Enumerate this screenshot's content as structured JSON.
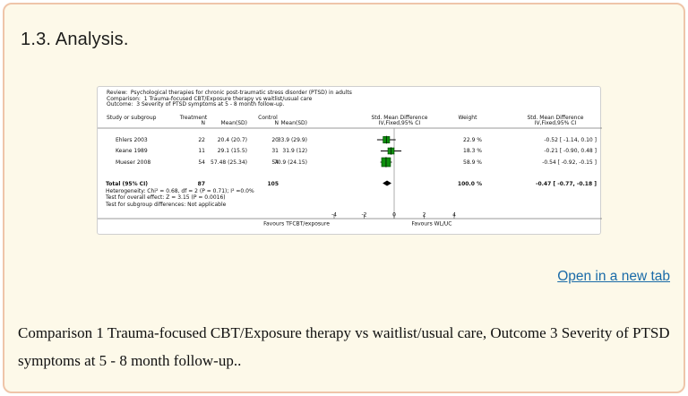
{
  "page": {
    "heading": "1.3. Analysis.",
    "link_label": "Open in a new tab",
    "caption": "Comparison 1 Trauma-focused CBT/Exposure therapy vs waitlist/usual care, Outcome 3 Severity of PTSD symptoms at 5 - 8 month follow-up..",
    "colors": {
      "card_background": "#fdf9e9",
      "card_border": "#efc5a9",
      "link": "#1a6ba8"
    }
  },
  "chart_data": {
    "type": "forest",
    "title_lines": {
      "review": "Review:  Psychological therapies for chronic post-traumatic stress disorder (PTSD) in adults",
      "comparison": "Comparison:  1 Trauma-focused CBT/Exposure therapy vs waitlist/usual care",
      "outcome": "Outcome:  3 Severity of PTSD symptoms at 5 - 8 month follow-up."
    },
    "columns": {
      "study": "Study or subgroup",
      "group1": "Treatment",
      "group2": "Control",
      "n": "N",
      "mean_sd": "Mean(SD)",
      "smd": "Std. Mean Difference",
      "method": "IV,Fixed,95% CI",
      "weight": "Weight"
    },
    "rows": [
      {
        "study": "Ehlers 2003",
        "n1": "22",
        "mean1": "20.4 (20.7)",
        "n2": "20",
        "mean2": "33.9 (29.9)",
        "weight": "22.9 %",
        "smd_text": "-0.52 [ -1.14, 0.10 ]",
        "est": -0.52,
        "lo": -1.14,
        "hi": 0.1,
        "w": 22.9
      },
      {
        "study": "Keane 1989",
        "n1": "11",
        "mean1": "29.1 (15.5)",
        "n2": "31",
        "mean2": "31.9 (12)",
        "weight": "18.3 %",
        "smd_text": "-0.21 [ -0.90, 0.48 ]",
        "est": -0.21,
        "lo": -0.9,
        "hi": 0.48,
        "w": 18.3
      },
      {
        "study": "Mueser 2008",
        "n1": "54",
        "mean1": "57.48 (25.34)",
        "n2": "54",
        "mean2": "70.9 (24.15)",
        "weight": "58.9 %",
        "smd_text": "-0.54 [ -0.92, -0.15 ]",
        "est": -0.54,
        "lo": -0.92,
        "hi": -0.15,
        "w": 58.9
      }
    ],
    "total": {
      "label": "Total (95% CI)",
      "n1": "87",
      "n2": "105",
      "weight": "100.0 %",
      "smd_text": "-0.47 [ -0.77, -0.18 ]",
      "est": -0.47,
      "lo": -0.77,
      "hi": -0.18
    },
    "footnotes": [
      "Heterogeneity: Chi² = 0.68, df = 2 (P = 0.71); I² =0.0%",
      "Test for overall effect: Z = 3.15 (P = 0.0016)",
      "Test for subgroup differences: Not applicable"
    ],
    "axis": {
      "ticks": [
        -4,
        -2,
        0,
        2,
        4
      ],
      "xlim": [
        -4,
        4
      ],
      "left_label": "Favours TFCBT/exposure",
      "right_label": "Favours WL/UC"
    },
    "style": {
      "marker_color": "#0d8f0d",
      "marker_border": "#004d00",
      "diamond_color": "#000000"
    }
  }
}
